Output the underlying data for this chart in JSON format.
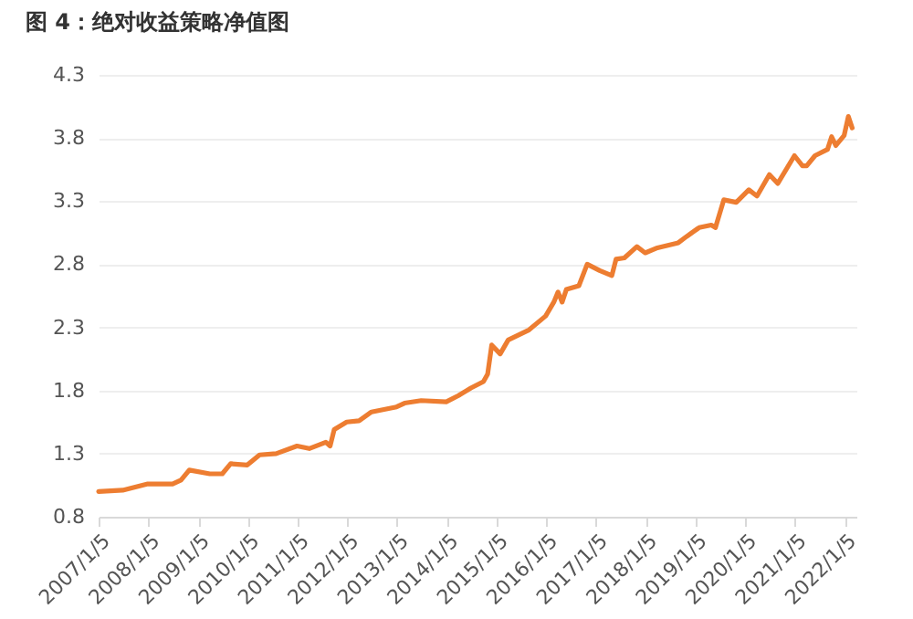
{
  "chart_data": {
    "type": "line",
    "title": "图 4：绝对收益策略净值图",
    "x": [
      "2007-01-05",
      "2007-07",
      "2008-01",
      "2008-07",
      "2008-09",
      "2008-11",
      "2009-04",
      "2009-07",
      "2009-09",
      "2010-01",
      "2010-04",
      "2010-08",
      "2011-01",
      "2011-04",
      "2011-08",
      "2011-09",
      "2011-10",
      "2012-01",
      "2012-04",
      "2012-07",
      "2012-10",
      "2013-01",
      "2013-03",
      "2013-07",
      "2014-01",
      "2014-04",
      "2014-07",
      "2014-10",
      "2014-11",
      "2014-12",
      "2015-02",
      "2015-04",
      "2015-09",
      "2016-01",
      "2016-03",
      "2016-04",
      "2016-05",
      "2016-06",
      "2016-09",
      "2016-11",
      "2017-02",
      "2017-05",
      "2017-06",
      "2017-08",
      "2017-11",
      "2018-01",
      "2018-04",
      "2018-09",
      "2018-11",
      "2019-02",
      "2019-05",
      "2019-06",
      "2019-08",
      "2019-11",
      "2020-02",
      "2020-04",
      "2020-07",
      "2020-09",
      "2021-01",
      "2021-03",
      "2021-04",
      "2021-06",
      "2021-09",
      "2021-10",
      "2021-11",
      "2022-01",
      "2022-02",
      "2022-03"
    ],
    "series": [
      {
        "color": "#ed7d31",
        "values": [
          1.0,
          1.01,
          1.06,
          1.06,
          1.09,
          1.17,
          1.14,
          1.14,
          1.22,
          1.21,
          1.29,
          1.3,
          1.36,
          1.34,
          1.39,
          1.36,
          1.49,
          1.55,
          1.56,
          1.63,
          1.65,
          1.67,
          1.7,
          1.72,
          1.71,
          1.76,
          1.82,
          1.87,
          1.93,
          2.16,
          2.09,
          2.2,
          2.28,
          2.39,
          2.5,
          2.58,
          2.5,
          2.6,
          2.63,
          2.8,
          2.75,
          2.71,
          2.84,
          2.85,
          2.94,
          2.89,
          2.93,
          2.97,
          3.02,
          3.09,
          3.11,
          3.09,
          3.31,
          3.29,
          3.39,
          3.34,
          3.51,
          3.44,
          3.66,
          3.58,
          3.58,
          3.66,
          3.71,
          3.81,
          3.74,
          3.82,
          3.97,
          3.88
        ]
      }
    ],
    "xlim": [
      "2007-01-05",
      "2022-04-01"
    ],
    "xticks": [
      {
        "value": "2007-01-05",
        "label": "2007/1/5"
      },
      {
        "value": "2008-01-05",
        "label": "2008/1/5"
      },
      {
        "value": "2009-01-05",
        "label": "2009/1/5"
      },
      {
        "value": "2010-01-05",
        "label": "2010/1/5"
      },
      {
        "value": "2011-01-05",
        "label": "2011/1/5"
      },
      {
        "value": "2012-01-05",
        "label": "2012/1/5"
      },
      {
        "value": "2013-01-05",
        "label": "2013/1/5"
      },
      {
        "value": "2014-01-05",
        "label": "2014/1/5"
      },
      {
        "value": "2015-01-05",
        "label": "2015/1/5"
      },
      {
        "value": "2016-01-05",
        "label": "2016/1/5"
      },
      {
        "value": "2017-01-05",
        "label": "2017/1/5"
      },
      {
        "value": "2018-01-05",
        "label": "2018/1/5"
      },
      {
        "value": "2019-01-05",
        "label": "2019/1/5"
      },
      {
        "value": "2020-01-05",
        "label": "2020/1/5"
      },
      {
        "value": "2021-01-05",
        "label": "2021/1/5"
      },
      {
        "value": "2022-01-05",
        "label": "2022/1/5"
      }
    ],
    "ylim": [
      0.8,
      4.3
    ],
    "yticks": [
      0.8,
      1.3,
      1.8,
      2.3,
      2.8,
      3.3,
      3.8,
      4.3
    ],
    "grid": "y",
    "marker": "none",
    "line_style": "solid"
  }
}
